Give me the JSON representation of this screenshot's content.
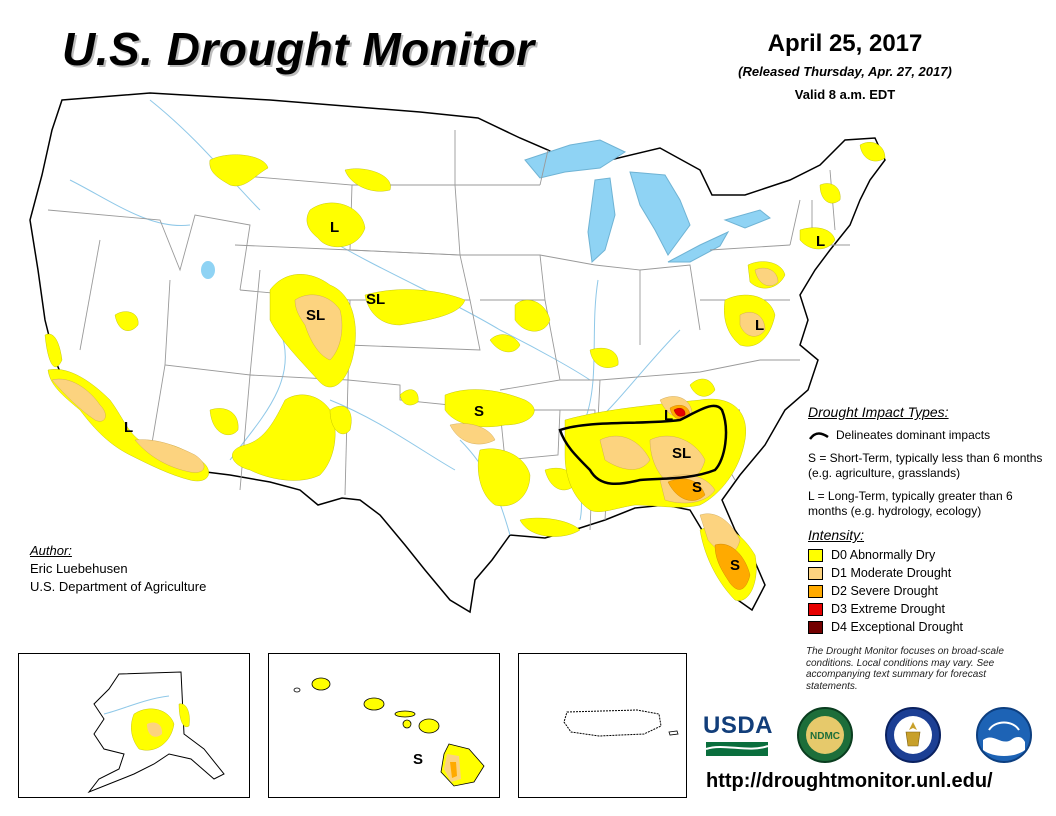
{
  "title": "U.S. Drought Monitor",
  "date": "April 25, 2017",
  "released": "(Released Thursday, Apr. 27, 2017)",
  "valid": "Valid 8 a.m. EDT",
  "impact": {
    "title": "Drought Impact Types:",
    "delineates": "Delineates dominant impacts",
    "short_term": "S = Short-Term, typically less than 6 months (e.g. agriculture, grasslands)",
    "long_term": "L = Long-Term, typically greater than 6 months (e.g. hydrology, ecology)"
  },
  "intensity": {
    "title": "Intensity:",
    "levels": [
      {
        "label": "D0 Abnormally Dry",
        "color": "#ffff00"
      },
      {
        "label": "D1 Moderate Drought",
        "color": "#fcd37f"
      },
      {
        "label": "D2 Severe Drought",
        "color": "#ffaa00"
      },
      {
        "label": "D3 Extreme Drought",
        "color": "#e60000"
      },
      {
        "label": "D4 Exceptional Drought",
        "color": "#730000"
      }
    ]
  },
  "author": {
    "label": "Author:",
    "name": "Eric Luebehusen",
    "org": "U.S. Department of Agriculture"
  },
  "note": "The Drought Monitor focuses on broad-scale conditions. Local conditions may vary. See accompanying text summary for forecast statements.",
  "url": "http://droughtmonitor.unl.edu/",
  "logos": {
    "usda": "USDA",
    "ndmc": "NDMC"
  },
  "map_labels": {
    "montana_wy": "L",
    "colorado_sl": "SL",
    "nebraska_sl": "SL",
    "socal": "L",
    "oklahoma": "S",
    "new_england": "L",
    "mid_atlantic": "L",
    "tennessee": "L",
    "southeast_sl": "SL",
    "georgia": "S",
    "florida": "S",
    "hawaii": "S"
  },
  "colors": {
    "water": "#8fd3f4",
    "rivers": "#8fc8e8",
    "boundary": "#9a9a9a"
  }
}
